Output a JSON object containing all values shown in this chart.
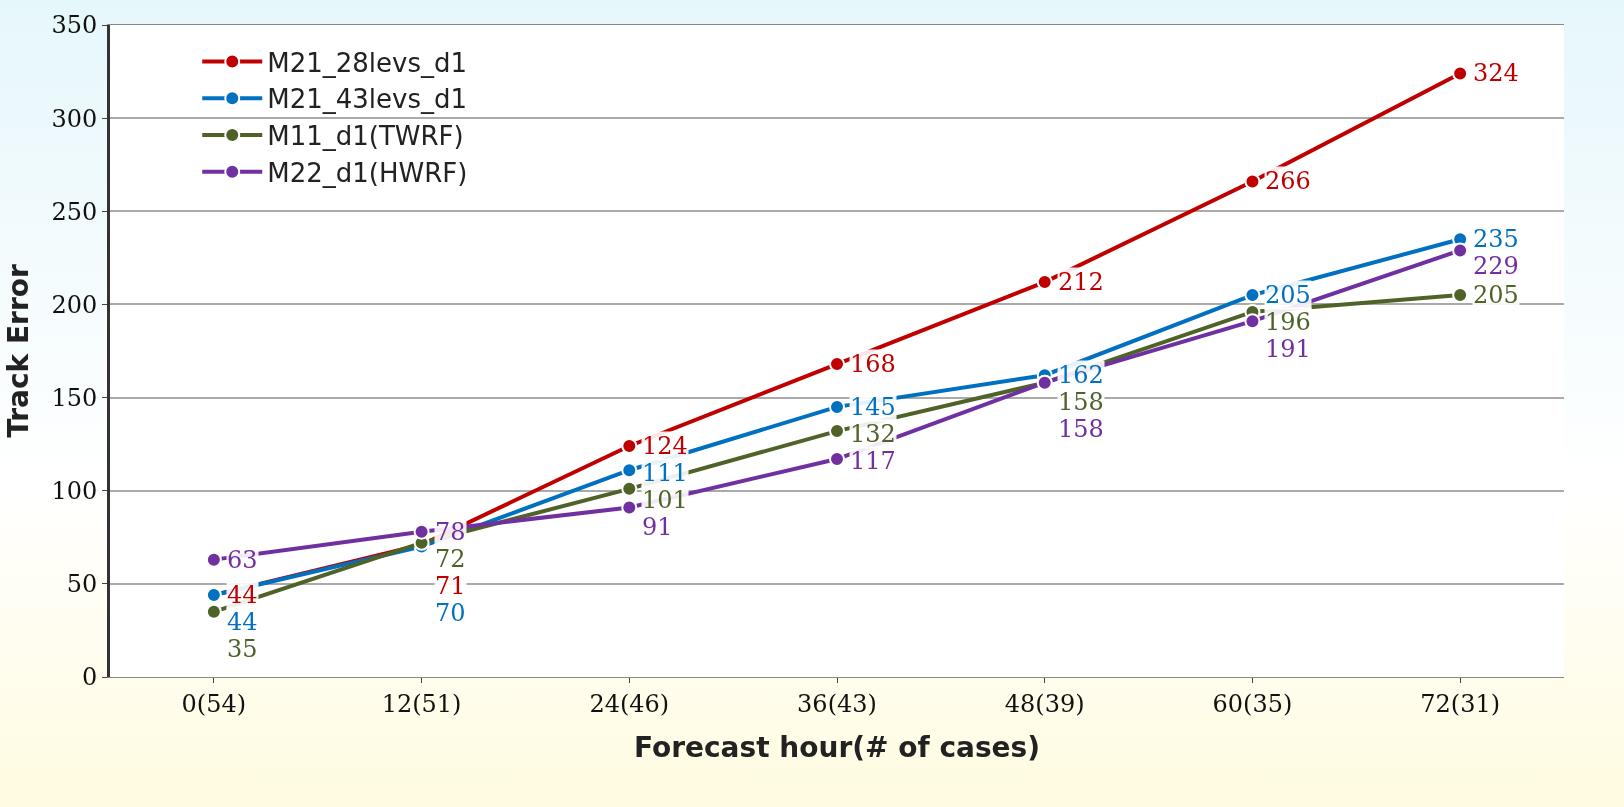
{
  "chart_data": {
    "type": "line",
    "xlabel": "Forecast hour(# of cases)",
    "ylabel": "Track Error",
    "categories": [
      "0(54)",
      "12(51)",
      "24(46)",
      "36(43)",
      "48(39)",
      "60(35)",
      "72(31)"
    ],
    "series": [
      {
        "name": "M21_28levs_d1",
        "color": "#c00000",
        "values": [
          44,
          71,
          124,
          168,
          212,
          266,
          324
        ]
      },
      {
        "name": "M21_43levs_d1",
        "color": "#0070c0",
        "values": [
          44,
          70,
          111,
          145,
          162,
          205,
          235
        ]
      },
      {
        "name": "M11_d1(TWRF)",
        "color": "#4f6228",
        "values": [
          35,
          72,
          101,
          132,
          158,
          196,
          205
        ]
      },
      {
        "name": "M22_d1(HWRF)",
        "color": "#7030a0",
        "values": [
          63,
          78,
          91,
          117,
          158,
          191,
          229
        ]
      }
    ],
    "ylim": [
      0,
      350
    ],
    "yticks": [
      0,
      50,
      100,
      150,
      200,
      250,
      300,
      350
    ],
    "grid": "y",
    "legend": "top left",
    "marker": "circle",
    "line_style": "solid",
    "data_labels": true
  }
}
